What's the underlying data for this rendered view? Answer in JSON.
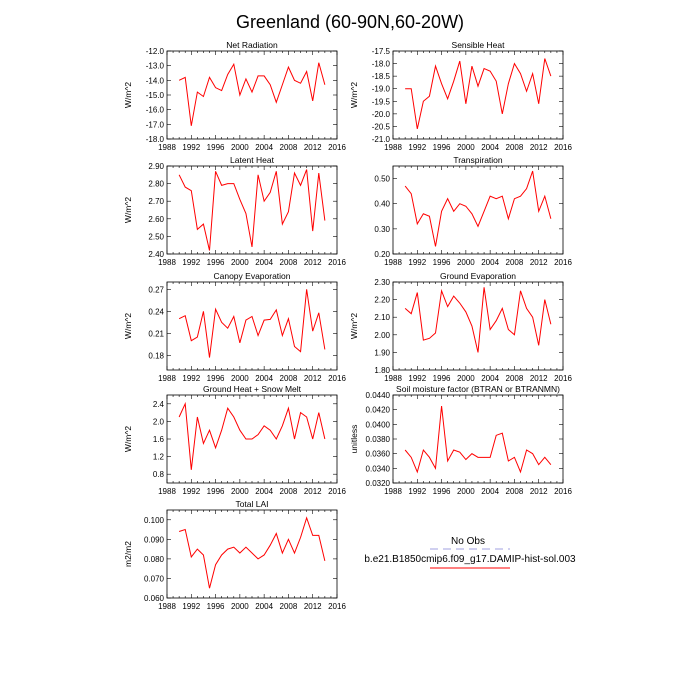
{
  "figure": {
    "title": "Greenland (60-90N,60-20W)"
  },
  "legend": {
    "obs_label": "No Obs",
    "model_label": "b.e21.B1850cmip6.f09_g17.DAMIP-hist-sol.003",
    "obs_color": "#a0a0e0",
    "model_color": "#ff0000"
  },
  "chart_data": [
    {
      "type": "line",
      "title": "Net Radiation",
      "ylabel": "W/m^2",
      "xlim": [
        1988,
        2016
      ],
      "xticks": [
        1988,
        1992,
        1996,
        2000,
        2004,
        2008,
        2012,
        2016
      ],
      "ylim": [
        -18.0,
        -12.0
      ],
      "yticks": [
        -18.0,
        -17.0,
        -16.0,
        -15.0,
        -14.0,
        -13.0,
        -12.0
      ],
      "ytick_decimals": 1,
      "x": [
        1990,
        1991,
        1992,
        1993,
        1994,
        1995,
        1996,
        1997,
        1998,
        1999,
        2000,
        2001,
        2002,
        2003,
        2004,
        2005,
        2006,
        2007,
        2008,
        2009,
        2010,
        2011,
        2012,
        2013,
        2014
      ],
      "series": [
        {
          "color": "#ff0000",
          "values": [
            -14.0,
            -13.8,
            -17.1,
            -14.8,
            -15.1,
            -13.8,
            -14.5,
            -14.7,
            -13.6,
            -12.9,
            -15.0,
            -13.9,
            -14.8,
            -13.7,
            -13.7,
            -14.3,
            -15.5,
            -14.3,
            -13.1,
            -14.0,
            -14.2,
            -13.4,
            -15.4,
            -12.8,
            -14.3
          ]
        }
      ]
    },
    {
      "type": "line",
      "title": "Sensible Heat",
      "ylabel": "W/m^2",
      "xlim": [
        1988,
        2016
      ],
      "xticks": [
        1988,
        1992,
        1996,
        2000,
        2004,
        2008,
        2012,
        2016
      ],
      "ylim": [
        -21.0,
        -17.5
      ],
      "yticks": [
        -21.0,
        -20.5,
        -20.0,
        -19.5,
        -19.0,
        -18.5,
        -18.0,
        -17.5
      ],
      "ytick_decimals": 1,
      "x": [
        1990,
        1991,
        1992,
        1993,
        1994,
        1995,
        1996,
        1997,
        1998,
        1999,
        2000,
        2001,
        2002,
        2003,
        2004,
        2005,
        2006,
        2007,
        2008,
        2009,
        2010,
        2011,
        2012,
        2013,
        2014
      ],
      "series": [
        {
          "color": "#ff0000",
          "values": [
            -19.0,
            -19.0,
            -20.6,
            -19.5,
            -19.3,
            -18.1,
            -18.8,
            -19.4,
            -18.7,
            -17.9,
            -19.6,
            -18.1,
            -18.9,
            -18.2,
            -18.3,
            -18.7,
            -20.0,
            -18.8,
            -18.0,
            -18.4,
            -19.1,
            -18.4,
            -19.6,
            -17.8,
            -18.5
          ]
        }
      ]
    },
    {
      "type": "line",
      "title": "Latent Heat",
      "ylabel": "W/m^2",
      "xlim": [
        1988,
        2016
      ],
      "xticks": [
        1988,
        1992,
        1996,
        2000,
        2004,
        2008,
        2012,
        2016
      ],
      "ylim": [
        2.4,
        2.9
      ],
      "yticks": [
        2.4,
        2.5,
        2.6,
        2.7,
        2.8,
        2.9
      ],
      "ytick_decimals": 2,
      "x": [
        1990,
        1991,
        1992,
        1993,
        1994,
        1995,
        1996,
        1997,
        1998,
        1999,
        2000,
        2001,
        2002,
        2003,
        2004,
        2005,
        2006,
        2007,
        2008,
        2009,
        2010,
        2011,
        2012,
        2013,
        2014
      ],
      "series": [
        {
          "color": "#ff0000",
          "values": [
            2.85,
            2.78,
            2.76,
            2.54,
            2.57,
            2.42,
            2.87,
            2.79,
            2.8,
            2.8,
            2.71,
            2.63,
            2.44,
            2.85,
            2.7,
            2.75,
            2.87,
            2.57,
            2.64,
            2.86,
            2.79,
            2.88,
            2.53,
            2.86,
            2.59
          ]
        }
      ]
    },
    {
      "type": "line",
      "title": "Transpiration",
      "ylabel": "",
      "xlim": [
        1988,
        2016
      ],
      "xticks": [
        1988,
        1992,
        1996,
        2000,
        2004,
        2008,
        2012,
        2016
      ],
      "ylim": [
        0.2,
        0.55
      ],
      "yticks": [
        0.2,
        0.3,
        0.4,
        0.5
      ],
      "ytick_decimals": 2,
      "x": [
        1990,
        1991,
        1992,
        1993,
        1994,
        1995,
        1996,
        1997,
        1998,
        1999,
        2000,
        2001,
        2002,
        2003,
        2004,
        2005,
        2006,
        2007,
        2008,
        2009,
        2010,
        2011,
        2012,
        2013,
        2014
      ],
      "series": [
        {
          "color": "#ff0000",
          "values": [
            0.47,
            0.44,
            0.32,
            0.36,
            0.35,
            0.23,
            0.37,
            0.42,
            0.37,
            0.4,
            0.39,
            0.36,
            0.31,
            0.37,
            0.43,
            0.42,
            0.43,
            0.34,
            0.42,
            0.43,
            0.46,
            0.53,
            0.37,
            0.43,
            0.34
          ]
        }
      ]
    },
    {
      "type": "line",
      "title": "Canopy Evaporation",
      "ylabel": "W/m^2",
      "xlim": [
        1988,
        2016
      ],
      "xticks": [
        1988,
        1992,
        1996,
        2000,
        2004,
        2008,
        2012,
        2016
      ],
      "ylim": [
        0.16,
        0.28
      ],
      "yticks": [
        0.18,
        0.21,
        0.24,
        0.27
      ],
      "ytick_decimals": 2,
      "x": [
        1990,
        1991,
        1992,
        1993,
        1994,
        1995,
        1996,
        1997,
        1998,
        1999,
        2000,
        2001,
        2002,
        2003,
        2004,
        2005,
        2006,
        2007,
        2008,
        2009,
        2010,
        2011,
        2012,
        2013,
        2014
      ],
      "series": [
        {
          "color": "#ff0000",
          "values": [
            0.23,
            0.234,
            0.2,
            0.205,
            0.24,
            0.177,
            0.243,
            0.225,
            0.217,
            0.233,
            0.197,
            0.228,
            0.233,
            0.207,
            0.228,
            0.229,
            0.242,
            0.207,
            0.23,
            0.192,
            0.185,
            0.27,
            0.213,
            0.238,
            0.188
          ]
        }
      ]
    },
    {
      "type": "line",
      "title": "Ground Evaporation",
      "ylabel": "W/m^2",
      "xlim": [
        1988,
        2016
      ],
      "xticks": [
        1988,
        1992,
        1996,
        2000,
        2004,
        2008,
        2012,
        2016
      ],
      "ylim": [
        1.8,
        2.3
      ],
      "yticks": [
        1.8,
        1.9,
        2.0,
        2.1,
        2.2,
        2.3
      ],
      "ytick_decimals": 2,
      "x": [
        1990,
        1991,
        1992,
        1993,
        1994,
        1995,
        1996,
        1997,
        1998,
        1999,
        2000,
        2001,
        2002,
        2003,
        2004,
        2005,
        2006,
        2007,
        2008,
        2009,
        2010,
        2011,
        2012,
        2013,
        2014
      ],
      "series": [
        {
          "color": "#ff0000",
          "values": [
            2.15,
            2.12,
            2.24,
            1.97,
            1.98,
            2.01,
            2.25,
            2.16,
            2.22,
            2.18,
            2.13,
            2.05,
            1.9,
            2.27,
            2.03,
            2.08,
            2.15,
            2.03,
            2.0,
            2.25,
            2.15,
            2.1,
            1.94,
            2.2,
            2.06
          ]
        }
      ]
    },
    {
      "type": "line",
      "title": "Ground Heat + Snow Melt",
      "ylabel": "W/m^2",
      "xlim": [
        1988,
        2016
      ],
      "xticks": [
        1988,
        1992,
        1996,
        2000,
        2004,
        2008,
        2012,
        2016
      ],
      "ylim": [
        0.6,
        2.6
      ],
      "yticks": [
        0.8,
        1.2,
        1.6,
        2.0,
        2.4
      ],
      "ytick_decimals": 1,
      "x": [
        1990,
        1991,
        1992,
        1993,
        1994,
        1995,
        1996,
        1997,
        1998,
        1999,
        2000,
        2001,
        2002,
        2003,
        2004,
        2005,
        2006,
        2007,
        2008,
        2009,
        2010,
        2011,
        2012,
        2013,
        2014
      ],
      "series": [
        {
          "color": "#ff0000",
          "values": [
            2.1,
            2.4,
            0.9,
            2.1,
            1.5,
            1.8,
            1.4,
            1.8,
            2.3,
            2.1,
            1.8,
            1.6,
            1.6,
            1.7,
            1.9,
            1.8,
            1.6,
            1.9,
            2.3,
            1.6,
            2.2,
            2.1,
            1.6,
            2.2,
            1.6
          ]
        }
      ]
    },
    {
      "type": "line",
      "title": "Soil moisture factor (BTRAN or BTRANMN)",
      "ylabel": "unitless",
      "xlim": [
        1988,
        2016
      ],
      "xticks": [
        1988,
        1992,
        1996,
        2000,
        2004,
        2008,
        2012,
        2016
      ],
      "ylim": [
        0.032,
        0.044
      ],
      "yticks": [
        0.032,
        0.034,
        0.036,
        0.038,
        0.04,
        0.042,
        0.044
      ],
      "ytick_decimals": 4,
      "x": [
        1990,
        1991,
        1992,
        1993,
        1994,
        1995,
        1996,
        1997,
        1998,
        1999,
        2000,
        2001,
        2002,
        2003,
        2004,
        2005,
        2006,
        2007,
        2008,
        2009,
        2010,
        2011,
        2012,
        2013,
        2014
      ],
      "series": [
        {
          "color": "#ff0000",
          "values": [
            0.0365,
            0.0355,
            0.0335,
            0.0365,
            0.0355,
            0.034,
            0.0425,
            0.035,
            0.0365,
            0.0362,
            0.0352,
            0.036,
            0.0355,
            0.0355,
            0.0355,
            0.0385,
            0.0388,
            0.035,
            0.0355,
            0.0335,
            0.0365,
            0.036,
            0.0345,
            0.0355,
            0.0345
          ]
        }
      ]
    },
    {
      "type": "line",
      "title": "Total LAI",
      "ylabel": "m2/m2",
      "xlim": [
        1988,
        2016
      ],
      "xticks": [
        1988,
        1992,
        1996,
        2000,
        2004,
        2008,
        2012,
        2016
      ],
      "ylim": [
        0.06,
        0.105
      ],
      "yticks": [
        0.06,
        0.07,
        0.08,
        0.09,
        0.1
      ],
      "ytick_decimals": 3,
      "x": [
        1990,
        1991,
        1992,
        1993,
        1994,
        1995,
        1996,
        1997,
        1998,
        1999,
        2000,
        2001,
        2002,
        2003,
        2004,
        2005,
        2006,
        2007,
        2008,
        2009,
        2010,
        2011,
        2012,
        2013,
        2014
      ],
      "series": [
        {
          "color": "#ff0000",
          "values": [
            0.094,
            0.095,
            0.081,
            0.085,
            0.082,
            0.065,
            0.077,
            0.082,
            0.085,
            0.086,
            0.083,
            0.086,
            0.083,
            0.08,
            0.082,
            0.087,
            0.093,
            0.083,
            0.09,
            0.083,
            0.091,
            0.101,
            0.092,
            0.092,
            0.079
          ]
        }
      ]
    }
  ]
}
